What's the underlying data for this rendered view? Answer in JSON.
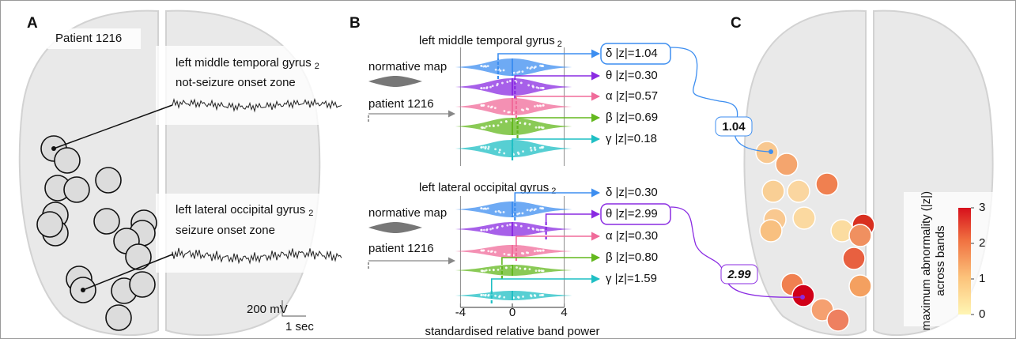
{
  "panel_a": {
    "letter": "A",
    "patient": "Patient 1216",
    "regions": [
      {
        "name": "left middle temporal gyrus",
        "subscript": "2",
        "status": "not-seizure onset zone"
      },
      {
        "name": "left lateral occipital gyrus",
        "subscript": "2",
        "status": "seizure onset zone"
      }
    ],
    "scale_bar": {
      "amplitude": "200 mV",
      "time": "1 sec"
    }
  },
  "panel_b": {
    "letter": "B",
    "legend": {
      "normative": "normative map",
      "patient": "patient 1216"
    },
    "regions": [
      {
        "name": "left middle temporal gyrus",
        "subscript": "2",
        "bands": [
          {
            "label": "δ |z|=1.04",
            "color": "#3d8ef0",
            "boxed": true
          },
          {
            "label": "θ |z|=0.30",
            "color": "#8a2be2"
          },
          {
            "label": "α |z|=0.57",
            "color": "#f06b9a"
          },
          {
            "label": "β |z|=0.69",
            "color": "#63b81e"
          },
          {
            "label": "γ |z|=0.18",
            "color": "#1fbfc4"
          }
        ]
      },
      {
        "name": "left lateral occipital gyrus",
        "subscript": "2",
        "bands": [
          {
            "label": "δ |z|=0.30",
            "color": "#3d8ef0"
          },
          {
            "label": "θ |z|=2.99",
            "color": "#8a2be2",
            "boxed": true
          },
          {
            "label": "α |z|=0.30",
            "color": "#f06b9a"
          },
          {
            "label": "β |z|=0.80",
            "color": "#63b81e"
          },
          {
            "label": "γ |z|=1.59",
            "color": "#1fbfc4"
          }
        ]
      }
    ],
    "xaxis": {
      "ticks": [
        -4,
        0,
        4
      ],
      "label": "standardised relative band power"
    }
  },
  "panel_c": {
    "letter": "C",
    "callouts": [
      "1.04",
      "2.99"
    ],
    "colorbar": {
      "lim": [
        0,
        3
      ],
      "ticks": [
        0,
        1,
        2,
        3
      ],
      "label": [
        "maximum abnormality (|z|)",
        "across bands"
      ]
    }
  }
}
